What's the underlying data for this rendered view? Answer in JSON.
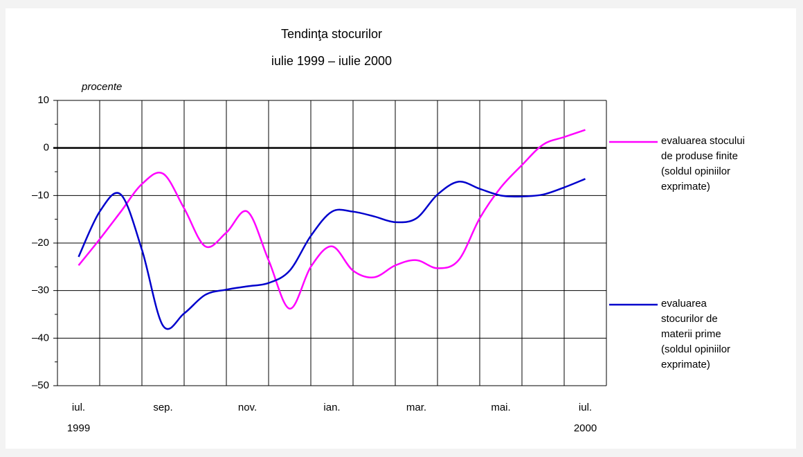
{
  "chart_data": {
    "type": "line",
    "title": "Tendinţa stocurilor",
    "subtitle": "iulie 1999 – iulie 2000",
    "y_label": "procente",
    "x": [
      0,
      0.5,
      1,
      1.5,
      2,
      2.5,
      3,
      3.5,
      4,
      4.5,
      5,
      5.5,
      6,
      6.5,
      7,
      7.5,
      8,
      8.5,
      9,
      9.5,
      10,
      10.5,
      11,
      11.5,
      12
    ],
    "series": [
      {
        "name": "evaluarea stocului de produse finite (soldul opiniilor exprimate)",
        "color": "#ff00ff",
        "values": [
          -24.7,
          -19.2,
          -13.4,
          -7.6,
          -5.4,
          -12.7,
          -20.7,
          -17.8,
          -13.4,
          -23.6,
          -33.8,
          -25,
          -20.7,
          -25.8,
          -27.2,
          -24.7,
          -23.6,
          -25.3,
          -23.6,
          -14.8,
          -8.3,
          -3.6,
          0.7,
          2.3,
          3.8
        ]
      },
      {
        "name": "evaluarea stocurilor de materii prime (soldul opiniilor exprimate)",
        "color": "#0000cc",
        "values": [
          -22.9,
          -13.4,
          -9.8,
          -21.4,
          -37.4,
          -34.8,
          -30.9,
          -29.8,
          -29.1,
          -28.4,
          -25.8,
          -18.5,
          -13.4,
          -13.4,
          -14.4,
          -15.6,
          -14.8,
          -9.8,
          -7.1,
          -8.6,
          -10,
          -10.2,
          -9.8,
          -8.3,
          -6.5
        ]
      }
    ],
    "xlim": [
      -0.5,
      12.5
    ],
    "xticks": [
      {
        "value": 0,
        "label": "iul.",
        "sublabel": "1999"
      },
      {
        "value": 2,
        "label": "sep."
      },
      {
        "value": 4,
        "label": "nov."
      },
      {
        "value": 6,
        "label": "ian."
      },
      {
        "value": 8,
        "label": "mar."
      },
      {
        "value": 10,
        "label": "mai."
      },
      {
        "value": 12,
        "label": "iul.",
        "sublabel": "2000"
      }
    ],
    "xgrid": [
      -0.5,
      0.5,
      1.5,
      2.5,
      3.5,
      4.5,
      5.5,
      6.5,
      7.5,
      8.5,
      9.5,
      10.5,
      11.5,
      12.5
    ],
    "ylim": [
      -50,
      10
    ],
    "yticks": [
      {
        "value": -50,
        "label": "–50"
      },
      {
        "value": -40,
        "label": "–40"
      },
      {
        "value": -30,
        "label": "–30"
      },
      {
        "value": -20,
        "label": "–20"
      },
      {
        "value": -10,
        "label": "–10"
      },
      0,
      10
    ],
    "yminor": [
      -45,
      -35,
      -25,
      -15,
      -5,
      5
    ],
    "grid": true,
    "smooth": true,
    "legend": "right"
  }
}
